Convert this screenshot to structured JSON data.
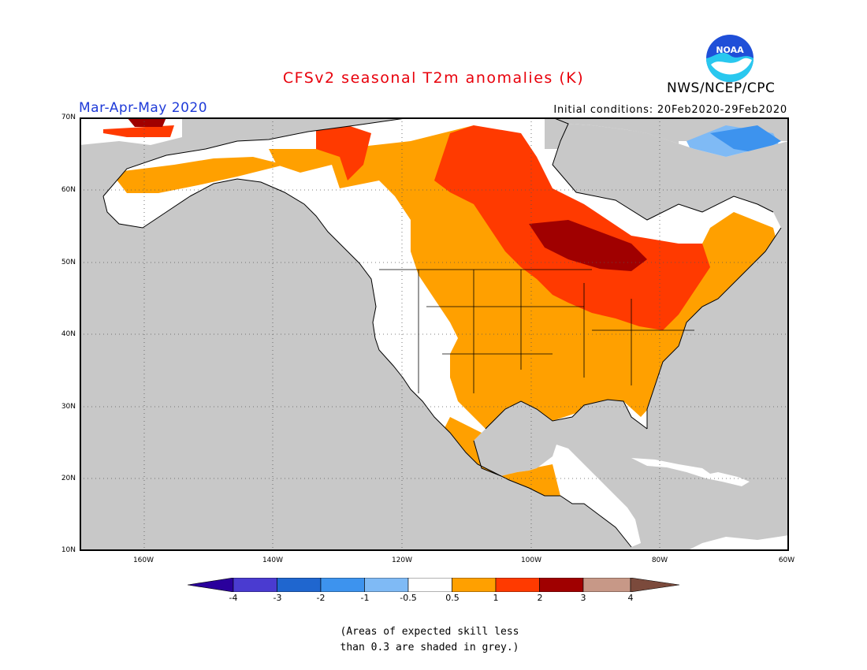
{
  "title": "CFSv2 seasonal T2m anomalies (K)",
  "organization": "NWS/NCEP/CPC",
  "logo_text": "NOAA",
  "season": "Mar-Apr-May 2020",
  "initial_conditions": "Initial conditions: 20Feb2020-29Feb2020",
  "note_line1": "(Areas of expected skill less",
  "note_line2": "than 0.3 are shaded in grey.)",
  "map": {
    "projection": "lat-lon",
    "lon_range": [
      -170,
      -60
    ],
    "lat_range": [
      10,
      70
    ],
    "grid": true,
    "lat_labels": [
      "70N",
      "60N",
      "50N",
      "40N",
      "30N",
      "20N",
      "10N"
    ],
    "lon_labels": [
      "160W",
      "140W",
      "120W",
      "100W",
      "80W",
      "60W"
    ],
    "no_skill_color": "#c8c8c8",
    "ocean_color": "#c8c8c8",
    "land_near_normal_color": "#ffffff",
    "regions": [
      {
        "name": "Canadian Prairies / Hudson Bay core",
        "anomaly_range": "2 to 3"
      },
      {
        "name": "Central/Northern Canada",
        "anomaly_range": "1 to 2"
      },
      {
        "name": "Great Lakes / Northeast US",
        "anomaly_range": "1 to 2"
      },
      {
        "name": "Southeast US",
        "anomaly_range": "0.5 to 1"
      },
      {
        "name": "Mexico",
        "anomaly_range": "0.5 to 1"
      },
      {
        "name": "Alaska north coast",
        "anomaly_range": "0.5 to 1"
      },
      {
        "name": "Eastern Canada / Labrador",
        "anomaly_range": "0.5 to 1"
      },
      {
        "name": "Baffin / Greenland edge",
        "anomaly_range": "-1 to -0.5"
      },
      {
        "name": "Western US",
        "anomaly_range": "-0.5 to 0.5"
      }
    ]
  },
  "colorbar": {
    "labels": [
      "-4",
      "-3",
      "-2",
      "-1",
      "-0.5",
      "0.5",
      "1",
      "2",
      "3",
      "4"
    ],
    "colors": [
      "#2a009c",
      "#4a3bd0",
      "#1f66cf",
      "#3d93ee",
      "#7fbaf5",
      "#ffffff",
      "#ffa000",
      "#ff3a00",
      "#a00000",
      "#c79887",
      "#7b4a3c"
    ]
  }
}
